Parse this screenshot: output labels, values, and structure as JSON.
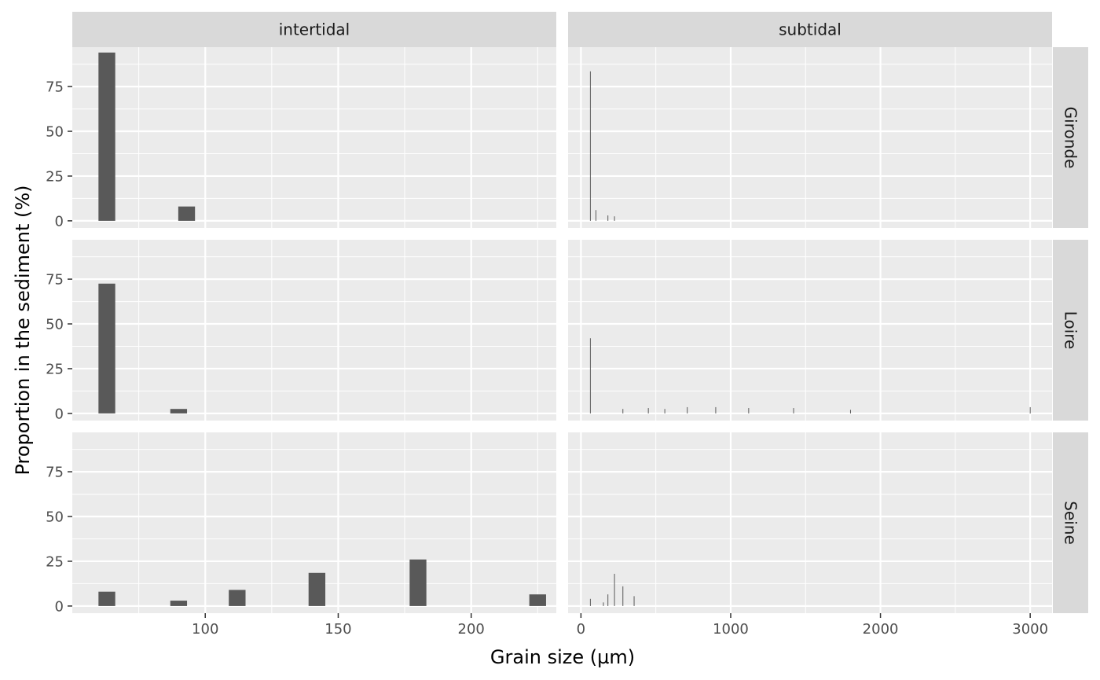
{
  "chart_data": {
    "type": "bar",
    "xlabel": "Grain size (µm)",
    "ylabel": "Proportion in the sediment (%)",
    "columns": [
      "intertidal",
      "subtidal"
    ],
    "rows": [
      "Gironde",
      "Loire",
      "Seine"
    ],
    "ylim": [
      -4,
      97
    ],
    "y_ticks": [
      0,
      25,
      50,
      75
    ],
    "colors": {
      "panel_bg": "#ebebeb",
      "strip_bg": "#d9d9d9",
      "grid_major": "#ffffff",
      "bar": "#595959",
      "tick": "#333333"
    },
    "grid": true,
    "panels": {
      "intertidal": {
        "xlim": [
          50,
          232
        ],
        "x_ticks": [
          100,
          150,
          200
        ],
        "x_minor": [
          75,
          125,
          175,
          225
        ],
        "bar_width": 6.3,
        "series": {
          "Gironde": [
            {
              "x": 63,
              "y": 94
            },
            {
              "x": 93,
              "y": 8
            }
          ],
          "Loire": [
            {
              "x": 63,
              "y": 72.5
            },
            {
              "x": 90,
              "y": 2.5
            }
          ],
          "Seine": [
            {
              "x": 63,
              "y": 8
            },
            {
              "x": 90,
              "y": 3
            },
            {
              "x": 112,
              "y": 9
            },
            {
              "x": 142,
              "y": 18.5
            },
            {
              "x": 180,
              "y": 26
            },
            {
              "x": 225,
              "y": 6.5
            }
          ]
        }
      },
      "subtidal": {
        "xlim": [
          -86,
          3146
        ],
        "x_ticks": [
          0,
          1000,
          2000,
          3000
        ],
        "x_minor": [
          500,
          1500,
          2500
        ],
        "bar_width": 5,
        "series": {
          "Gironde": [
            {
              "x": 63,
              "y": 83.5
            },
            {
              "x": 100,
              "y": 6
            },
            {
              "x": 180,
              "y": 3
            },
            {
              "x": 224,
              "y": 2.5
            }
          ],
          "Loire": [
            {
              "x": 63,
              "y": 42
            },
            {
              "x": 280,
              "y": 2.5
            },
            {
              "x": 450,
              "y": 3
            },
            {
              "x": 560,
              "y": 2.5
            },
            {
              "x": 710,
              "y": 3.5
            },
            {
              "x": 900,
              "y": 3.5
            },
            {
              "x": 1120,
              "y": 3
            },
            {
              "x": 1420,
              "y": 3
            },
            {
              "x": 1800,
              "y": 2
            },
            {
              "x": 3000,
              "y": 3.5
            }
          ],
          "Seine": [
            {
              "x": 63,
              "y": 4
            },
            {
              "x": 150,
              "y": 2
            },
            {
              "x": 180,
              "y": 6.5
            },
            {
              "x": 224,
              "y": 18
            },
            {
              "x": 280,
              "y": 11
            },
            {
              "x": 355,
              "y": 5.5
            }
          ]
        }
      }
    }
  }
}
